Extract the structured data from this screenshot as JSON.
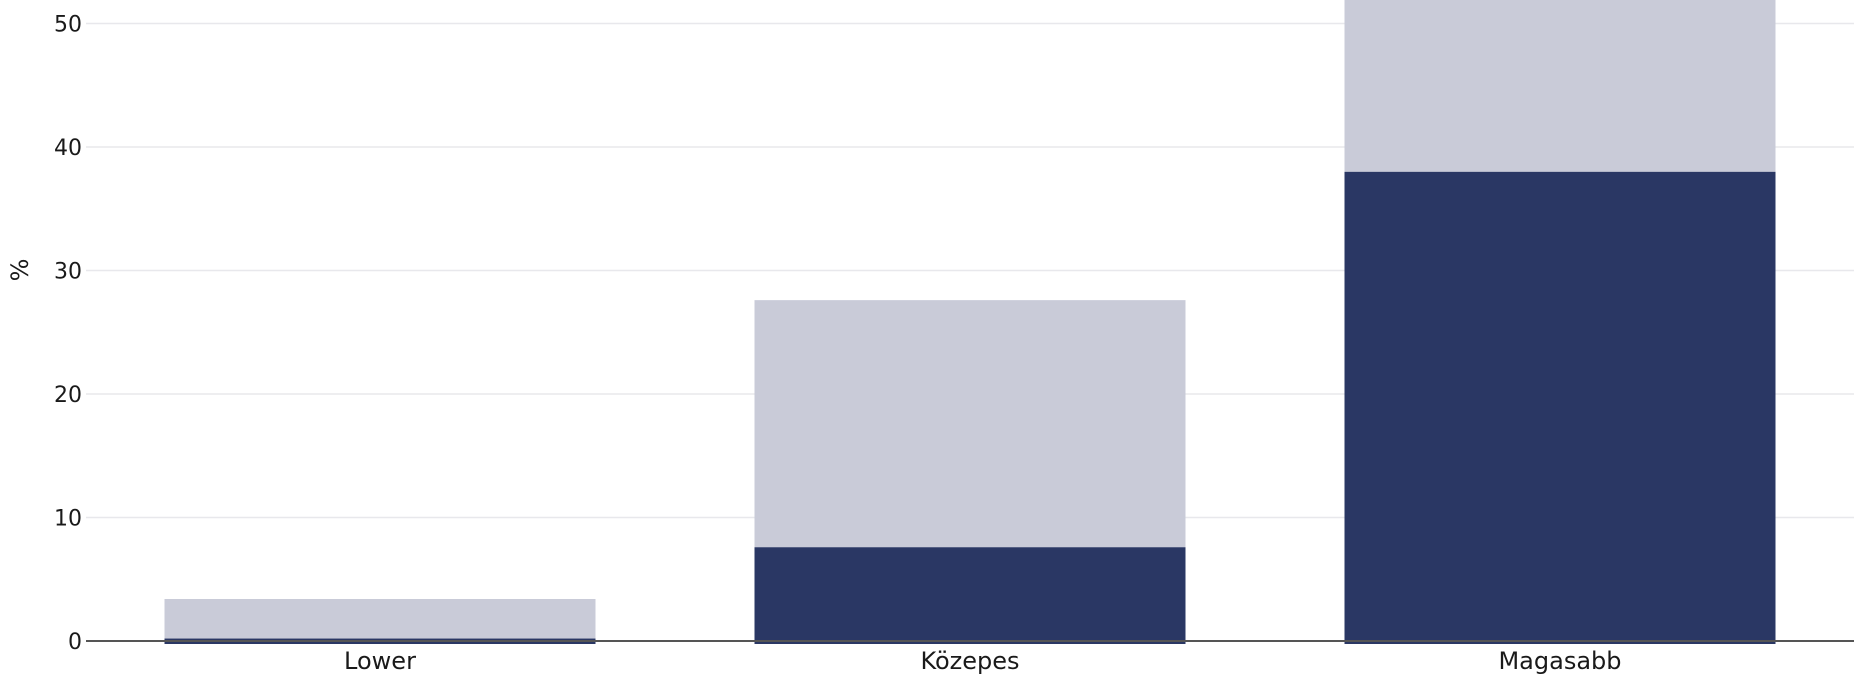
{
  "chart_data": {
    "type": "bar",
    "stacked": true,
    "categories": [
      "Lower",
      "Közepes",
      "Magasabb"
    ],
    "series": [
      {
        "values": [
          0.2,
          7.6,
          38.0
        ],
        "color": "#2a3764"
      },
      {
        "values": [
          3.2,
          20.0,
          17.0
        ],
        "color": "#c9cbd8"
      }
    ],
    "ylabel": "%",
    "ylim": [
      0,
      51.8
    ],
    "yticks": [
      0,
      10,
      20,
      30,
      40,
      50
    ],
    "grid": true
  }
}
